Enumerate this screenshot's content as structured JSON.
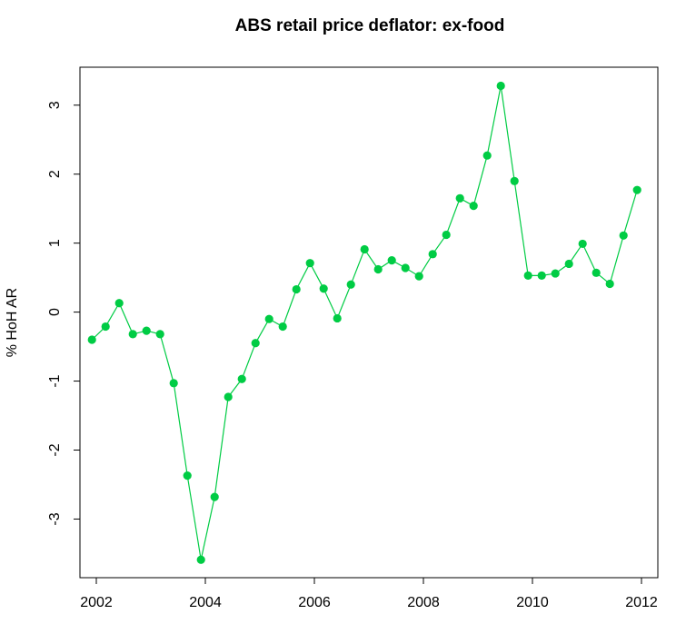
{
  "chart_data": {
    "type": "line",
    "title": "ABS retail price deflator: ex-food",
    "xlabel": "",
    "ylabel": "% HoH AR",
    "xlim": [
      2001.7,
      2012.3
    ],
    "ylim": [
      -3.85,
      3.55
    ],
    "x_ticks": [
      2002,
      2004,
      2006,
      2008,
      2010,
      2012
    ],
    "y_ticks": [
      -3,
      -2,
      -1,
      0,
      1,
      2,
      3
    ],
    "grid": false,
    "legend": "none",
    "series": [
      {
        "color": "#00cc44",
        "marker": "circle",
        "points": [
          {
            "x": 2001.92,
            "y": -0.4
          },
          {
            "x": 2002.17,
            "y": -0.21
          },
          {
            "x": 2002.42,
            "y": 0.13
          },
          {
            "x": 2002.67,
            "y": -0.32
          },
          {
            "x": 2002.92,
            "y": -0.27
          },
          {
            "x": 2003.17,
            "y": -0.32
          },
          {
            "x": 2003.42,
            "y": -1.03
          },
          {
            "x": 2003.67,
            "y": -2.37
          },
          {
            "x": 2003.92,
            "y": -3.59
          },
          {
            "x": 2004.17,
            "y": -2.68
          },
          {
            "x": 2004.42,
            "y": -1.23
          },
          {
            "x": 2004.67,
            "y": -0.97
          },
          {
            "x": 2004.92,
            "y": -0.45
          },
          {
            "x": 2005.17,
            "y": -0.1
          },
          {
            "x": 2005.42,
            "y": -0.21
          },
          {
            "x": 2005.67,
            "y": 0.33
          },
          {
            "x": 2005.92,
            "y": 0.71
          },
          {
            "x": 2006.17,
            "y": 0.34
          },
          {
            "x": 2006.42,
            "y": -0.09
          },
          {
            "x": 2006.67,
            "y": 0.4
          },
          {
            "x": 2006.92,
            "y": 0.91
          },
          {
            "x": 2007.17,
            "y": 0.62
          },
          {
            "x": 2007.42,
            "y": 0.75
          },
          {
            "x": 2007.67,
            "y": 0.64
          },
          {
            "x": 2007.92,
            "y": 0.52
          },
          {
            "x": 2008.17,
            "y": 0.84
          },
          {
            "x": 2008.42,
            "y": 1.12
          },
          {
            "x": 2008.67,
            "y": 1.65
          },
          {
            "x": 2008.92,
            "y": 1.54
          },
          {
            "x": 2009.17,
            "y": 2.27
          },
          {
            "x": 2009.42,
            "y": 3.28
          },
          {
            "x": 2009.67,
            "y": 1.9
          },
          {
            "x": 2009.92,
            "y": 0.53
          },
          {
            "x": 2010.17,
            "y": 0.53
          },
          {
            "x": 2010.42,
            "y": 0.56
          },
          {
            "x": 2010.67,
            "y": 0.7
          },
          {
            "x": 2010.92,
            "y": 0.99
          },
          {
            "x": 2011.17,
            "y": 0.57
          },
          {
            "x": 2011.42,
            "y": 0.41
          },
          {
            "x": 2011.67,
            "y": 1.11
          },
          {
            "x": 2011.92,
            "y": 1.77
          }
        ]
      }
    ]
  }
}
